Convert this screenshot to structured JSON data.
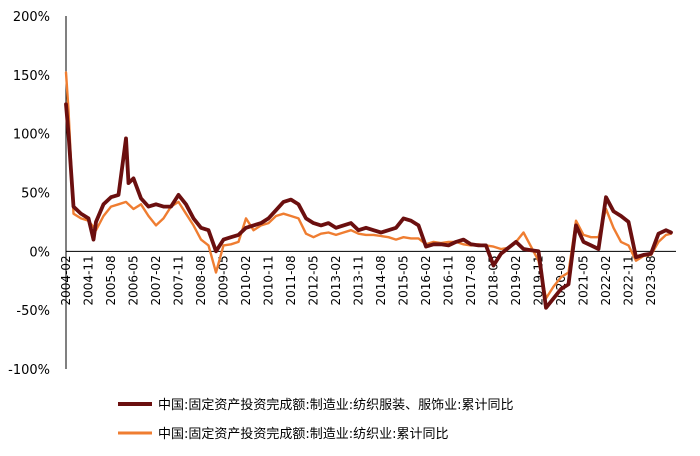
{
  "chart_data": {
    "type": "line",
    "ylim": [
      -100,
      200
    ],
    "yticks": [
      -100,
      -50,
      0,
      50,
      100,
      150,
      200
    ],
    "ytick_labels": [
      "-100%",
      "-50%",
      "0%",
      "50%",
      "100%",
      "150%",
      "200%"
    ],
    "xlim": [
      "2004-02",
      "2024-06"
    ],
    "xtick_labels": [
      "2004-02",
      "2004-11",
      "2005-08",
      "2006-05",
      "2007-02",
      "2007-11",
      "2008-08",
      "2009-05",
      "2010-02",
      "2010-11",
      "2011-08",
      "2012-05",
      "2013-02",
      "2013-11",
      "2014-08",
      "2015-05",
      "2016-02",
      "2016-11",
      "2017-08",
      "2018-05",
      "2019-02",
      "2019-11",
      "2020-08",
      "2021-05",
      "2022-02",
      "2022-11",
      "2023-08"
    ],
    "legend_position": "bottom",
    "grid": false,
    "series": [
      {
        "name": "中国:固定资产投资完成额:制造业:纺织服装、服饰业:累计同比",
        "color": "#6b0f0f",
        "points": [
          [
            "2004-02",
            125
          ],
          [
            "2004-03",
            100
          ],
          [
            "2004-05",
            38
          ],
          [
            "2004-08",
            32
          ],
          [
            "2004-11",
            28
          ],
          [
            "2005-01",
            10
          ],
          [
            "2005-02",
            25
          ],
          [
            "2005-05",
            40
          ],
          [
            "2005-08",
            46
          ],
          [
            "2005-11",
            48
          ],
          [
            "2006-02",
            96
          ],
          [
            "2006-03",
            58
          ],
          [
            "2006-05",
            62
          ],
          [
            "2006-08",
            45
          ],
          [
            "2006-11",
            38
          ],
          [
            "2007-02",
            40
          ],
          [
            "2007-05",
            38
          ],
          [
            "2007-08",
            38
          ],
          [
            "2007-11",
            48
          ],
          [
            "2008-02",
            40
          ],
          [
            "2008-05",
            28
          ],
          [
            "2008-08",
            20
          ],
          [
            "2008-11",
            18
          ],
          [
            "2009-02",
            0
          ],
          [
            "2009-05",
            10
          ],
          [
            "2009-08",
            12
          ],
          [
            "2009-11",
            14
          ],
          [
            "2010-02",
            20
          ],
          [
            "2010-05",
            22
          ],
          [
            "2010-08",
            24
          ],
          [
            "2010-11",
            28
          ],
          [
            "2011-02",
            35
          ],
          [
            "2011-05",
            42
          ],
          [
            "2011-08",
            44
          ],
          [
            "2011-11",
            40
          ],
          [
            "2012-02",
            28
          ],
          [
            "2012-05",
            24
          ],
          [
            "2012-08",
            22
          ],
          [
            "2012-11",
            24
          ],
          [
            "2013-02",
            20
          ],
          [
            "2013-05",
            22
          ],
          [
            "2013-08",
            24
          ],
          [
            "2013-11",
            18
          ],
          [
            "2014-02",
            20
          ],
          [
            "2014-05",
            18
          ],
          [
            "2014-08",
            16
          ],
          [
            "2014-11",
            18
          ],
          [
            "2015-02",
            20
          ],
          [
            "2015-05",
            28
          ],
          [
            "2015-08",
            26
          ],
          [
            "2015-11",
            22
          ],
          [
            "2016-02",
            4
          ],
          [
            "2016-05",
            6
          ],
          [
            "2016-08",
            6
          ],
          [
            "2016-11",
            5
          ],
          [
            "2017-02",
            8
          ],
          [
            "2017-05",
            10
          ],
          [
            "2017-08",
            6
          ],
          [
            "2017-11",
            5
          ],
          [
            "2018-02",
            5
          ],
          [
            "2018-05",
            -12
          ],
          [
            "2018-08",
            -2
          ],
          [
            "2018-11",
            3
          ],
          [
            "2019-02",
            8
          ],
          [
            "2019-05",
            2
          ],
          [
            "2019-08",
            1
          ],
          [
            "2019-11",
            0
          ],
          [
            "2020-02",
            -48
          ],
          [
            "2020-05",
            -40
          ],
          [
            "2020-08",
            -32
          ],
          [
            "2020-11",
            -28
          ],
          [
            "2021-02",
            22
          ],
          [
            "2021-05",
            8
          ],
          [
            "2021-08",
            5
          ],
          [
            "2021-11",
            2
          ],
          [
            "2022-02",
            46
          ],
          [
            "2022-05",
            34
          ],
          [
            "2022-08",
            30
          ],
          [
            "2022-11",
            25
          ],
          [
            "2023-02",
            -5
          ],
          [
            "2023-05",
            -3
          ],
          [
            "2023-08",
            -2
          ],
          [
            "2023-11",
            15
          ],
          [
            "2024-02",
            18
          ],
          [
            "2024-04",
            16
          ]
        ]
      },
      {
        "name": "中国:固定资产投资完成额:制造业:纺织业:累计同比",
        "color": "#ef7d31",
        "points": [
          [
            "2004-02",
            152
          ],
          [
            "2004-03",
            120
          ],
          [
            "2004-05",
            32
          ],
          [
            "2004-08",
            28
          ],
          [
            "2004-11",
            26
          ],
          [
            "2005-02",
            18
          ],
          [
            "2005-05",
            30
          ],
          [
            "2005-08",
            38
          ],
          [
            "2005-11",
            40
          ],
          [
            "2006-02",
            42
          ],
          [
            "2006-05",
            36
          ],
          [
            "2006-08",
            40
          ],
          [
            "2006-11",
            30
          ],
          [
            "2007-02",
            22
          ],
          [
            "2007-05",
            28
          ],
          [
            "2007-08",
            38
          ],
          [
            "2007-11",
            42
          ],
          [
            "2008-02",
            32
          ],
          [
            "2008-05",
            22
          ],
          [
            "2008-08",
            10
          ],
          [
            "2008-11",
            5
          ],
          [
            "2009-02",
            -18
          ],
          [
            "2009-05",
            5
          ],
          [
            "2009-08",
            6
          ],
          [
            "2009-11",
            8
          ],
          [
            "2010-02",
            28
          ],
          [
            "2010-05",
            18
          ],
          [
            "2010-08",
            22
          ],
          [
            "2010-11",
            24
          ],
          [
            "2011-02",
            30
          ],
          [
            "2011-05",
            32
          ],
          [
            "2011-08",
            30
          ],
          [
            "2011-11",
            28
          ],
          [
            "2012-02",
            15
          ],
          [
            "2012-05",
            12
          ],
          [
            "2012-08",
            15
          ],
          [
            "2012-11",
            16
          ],
          [
            "2013-02",
            14
          ],
          [
            "2013-05",
            16
          ],
          [
            "2013-08",
            18
          ],
          [
            "2013-11",
            15
          ],
          [
            "2014-02",
            14
          ],
          [
            "2014-05",
            14
          ],
          [
            "2014-08",
            13
          ],
          [
            "2014-11",
            12
          ],
          [
            "2015-02",
            10
          ],
          [
            "2015-05",
            12
          ],
          [
            "2015-08",
            11
          ],
          [
            "2015-11",
            11
          ],
          [
            "2016-02",
            6
          ],
          [
            "2016-05",
            8
          ],
          [
            "2016-08",
            7
          ],
          [
            "2016-11",
            8
          ],
          [
            "2017-02",
            8
          ],
          [
            "2017-05",
            6
          ],
          [
            "2017-08",
            5
          ],
          [
            "2017-11",
            6
          ],
          [
            "2018-02",
            5
          ],
          [
            "2018-05",
            4
          ],
          [
            "2018-08",
            2
          ],
          [
            "2018-11",
            3
          ],
          [
            "2019-02",
            8
          ],
          [
            "2019-05",
            16
          ],
          [
            "2019-08",
            4
          ],
          [
            "2019-11",
            -8
          ],
          [
            "2020-02",
            -40
          ],
          [
            "2020-05",
            -30
          ],
          [
            "2020-08",
            -22
          ],
          [
            "2020-11",
            -18
          ],
          [
            "2021-02",
            26
          ],
          [
            "2021-05",
            14
          ],
          [
            "2021-08",
            12
          ],
          [
            "2021-11",
            12
          ],
          [
            "2022-02",
            36
          ],
          [
            "2022-05",
            20
          ],
          [
            "2022-08",
            8
          ],
          [
            "2022-11",
            5
          ],
          [
            "2023-02",
            -8
          ],
          [
            "2023-05",
            -4
          ],
          [
            "2023-08",
            -3
          ],
          [
            "2023-11",
            8
          ],
          [
            "2024-02",
            14
          ],
          [
            "2024-04",
            15
          ]
        ]
      }
    ]
  }
}
